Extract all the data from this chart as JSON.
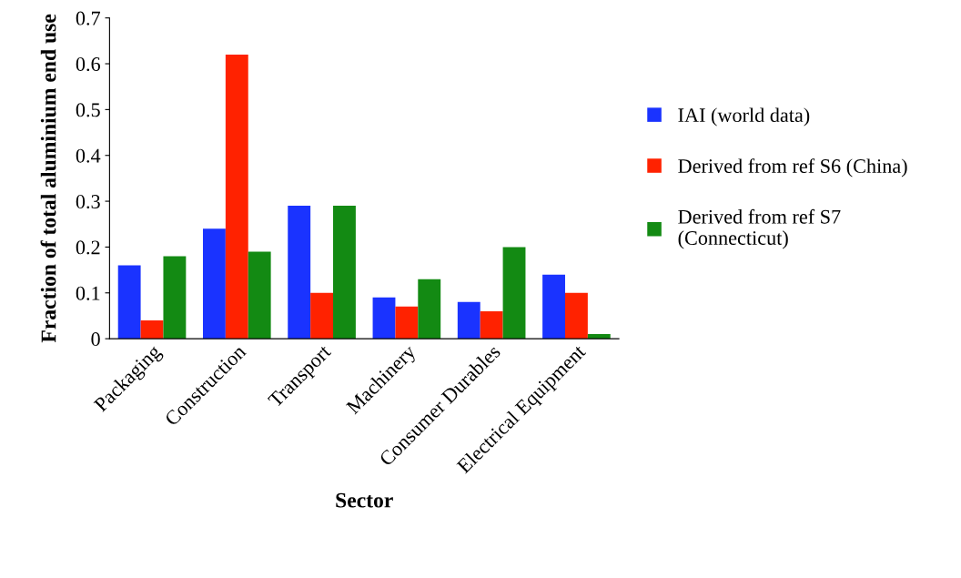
{
  "chart_data": {
    "type": "bar",
    "xlabel": "Sector",
    "ylabel": "Fraction of total aluminium end use",
    "categories": [
      "Packaging",
      "Construction",
      "Transport",
      "Machinery",
      "Consumer Durables",
      "Electrical Equipment"
    ],
    "series": [
      {
        "name": "IAI (world data)",
        "color": "#1a33ff",
        "values": [
          0.16,
          0.24,
          0.29,
          0.09,
          0.08,
          0.14
        ]
      },
      {
        "name": "Derived from ref S6 (China)",
        "color": "#ff2200",
        "values": [
          0.04,
          0.62,
          0.1,
          0.07,
          0.06,
          0.1
        ]
      },
      {
        "name": "Derived from ref S7\n(Connecticut)",
        "color": "#138a13",
        "values": [
          0.18,
          0.19,
          0.29,
          0.13,
          0.2,
          0.01
        ]
      }
    ],
    "ylim": [
      0,
      0.7
    ],
    "yticks": [
      0,
      0.1,
      0.2,
      0.3,
      0.4,
      0.5,
      0.6,
      0.7
    ],
    "grid": false,
    "legend": "right"
  }
}
